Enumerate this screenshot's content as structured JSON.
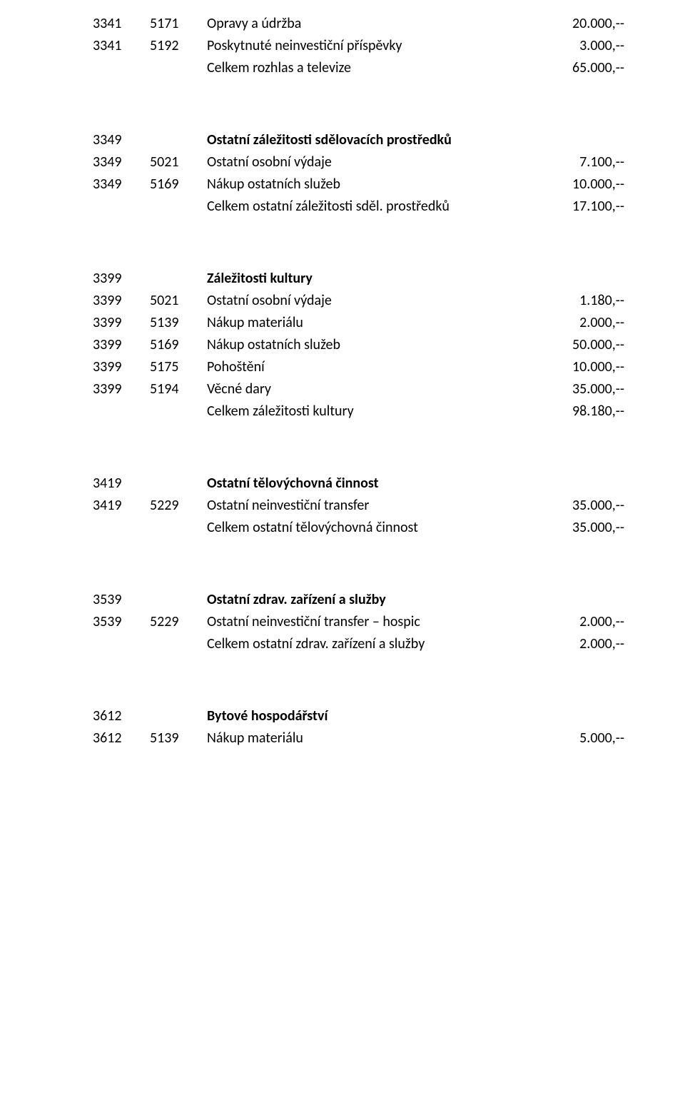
{
  "font_family": "Calibri",
  "text_color": "#000000",
  "background_color": "#ffffff",
  "font_size_pt": 11,
  "sections": {
    "s1": {
      "rows": [
        {
          "c1": "3341",
          "c2": "5171",
          "desc": "Opravy a údržba",
          "amt": "20.000,--"
        },
        {
          "c1": "3341",
          "c2": "5192",
          "desc": "Poskytnuté neinvestiční příspěvky",
          "amt": "3.000,--"
        }
      ],
      "total": {
        "desc": "Celkem rozhlas a televize",
        "amt": "65.000,--"
      }
    },
    "s2": {
      "head": {
        "c1": "3349",
        "desc": "Ostatní záležitosti sdělovacích prostředků"
      },
      "rows": [
        {
          "c1": "3349",
          "c2": "5021",
          "desc": "Ostatní osobní výdaje",
          "amt": "7.100,--"
        },
        {
          "c1": "3349",
          "c2": "5169",
          "desc": "Nákup ostatních služeb",
          "amt": "10.000,--"
        }
      ],
      "total": {
        "desc": "Celkem ostatní záležitosti sděl. prostředků",
        "amt": "17.100,--"
      }
    },
    "s3": {
      "head": {
        "c1": "3399",
        "desc": "Záležitosti kultury"
      },
      "rows": [
        {
          "c1": "3399",
          "c2": "5021",
          "desc": "Ostatní osobní výdaje",
          "amt": "1.180,--"
        },
        {
          "c1": "3399",
          "c2": "5139",
          "desc": "Nákup materiálu",
          "amt": "2.000,--"
        },
        {
          "c1": "3399",
          "c2": "5169",
          "desc": "Nákup ostatních služeb",
          "amt": "50.000,--"
        },
        {
          "c1": "3399",
          "c2": "5175",
          "desc": "Pohoštění",
          "amt": "10.000,--"
        },
        {
          "c1": "3399",
          "c2": "5194",
          "desc": "Věcné dary",
          "amt": "35.000,--"
        }
      ],
      "total": {
        "desc": "Celkem záležitosti kultury",
        "amt": "98.180,--"
      }
    },
    "s4": {
      "head": {
        "c1": "3419",
        "desc": "Ostatní tělovýchovná činnost"
      },
      "rows": [
        {
          "c1": "3419",
          "c2": "5229",
          "desc": "Ostatní neinvestiční transfer",
          "amt": "35.000,--"
        }
      ],
      "total": {
        "desc": "Celkem ostatní tělovýchovná činnost",
        "amt": "35.000,--"
      }
    },
    "s5": {
      "head": {
        "c1": "3539",
        "desc": "Ostatní zdrav. zařízení a služby"
      },
      "rows": [
        {
          "c1": "3539",
          "c2": "5229",
          "desc": "Ostatní neinvestiční transfer – hospic",
          "amt": "2.000,--"
        }
      ],
      "total": {
        "desc": "Celkem ostatní zdrav. zařízení a služby",
        "amt": "2.000,--"
      }
    },
    "s6": {
      "head": {
        "c1": "3612",
        "desc": "Bytové hospodářství"
      },
      "rows": [
        {
          "c1": "3612",
          "c2": "5139",
          "desc": "Nákup materiálu",
          "amt": "5.000,--"
        }
      ]
    }
  }
}
